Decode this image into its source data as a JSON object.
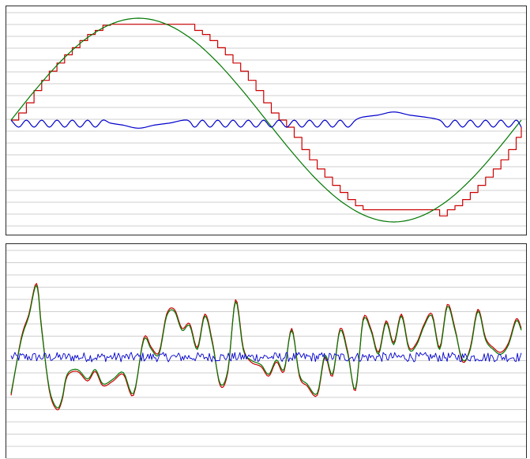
{
  "chart_data": [
    {
      "type": "line",
      "title": "",
      "xlabel": "",
      "ylabel": "",
      "xlim": [
        0,
        1
      ],
      "ylim": [
        -1.12,
        1.12
      ],
      "grid": true,
      "legend": "none",
      "series": [
        {
          "color": "#cc0000",
          "note_style": "steps",
          "x": [
            0.0,
            0.015,
            0.03,
            0.045,
            0.06,
            0.075,
            0.09,
            0.105,
            0.12,
            0.135,
            0.15,
            0.165,
            0.18,
            0.195,
            0.345,
            0.36,
            0.375,
            0.39,
            0.405,
            0.42,
            0.435,
            0.45,
            0.465,
            0.48,
            0.495,
            0.51,
            0.525,
            0.54,
            0.555,
            0.57,
            0.585,
            0.6,
            0.615,
            0.63,
            0.645,
            0.66,
            0.675,
            0.69,
            0.84,
            0.855,
            0.87,
            0.885,
            0.9,
            0.915,
            0.93,
            0.945,
            0.96,
            0.975,
            0.99,
            1.0
          ],
          "y": [
            0.0,
            0.07,
            0.17,
            0.29,
            0.39,
            0.48,
            0.56,
            0.64,
            0.71,
            0.78,
            0.84,
            0.88,
            0.93,
            0.94,
            0.94,
            0.88,
            0.84,
            0.78,
            0.71,
            0.64,
            0.56,
            0.48,
            0.39,
            0.29,
            0.17,
            0.07,
            0.0,
            -0.07,
            -0.17,
            -0.29,
            -0.39,
            -0.48,
            -0.56,
            -0.64,
            -0.71,
            -0.78,
            -0.84,
            -0.88,
            -0.94,
            -0.88,
            -0.84,
            -0.78,
            -0.71,
            -0.64,
            -0.56,
            -0.48,
            -0.39,
            -0.29,
            -0.17,
            -0.07
          ]
        },
        {
          "color": "#007700",
          "note_style": "sine",
          "x": [
            0.0,
            0.05,
            0.1,
            0.15,
            0.2,
            0.25,
            0.3,
            0.35,
            0.4,
            0.45,
            0.5,
            0.55,
            0.6,
            0.65,
            0.7,
            0.75,
            0.8,
            0.85,
            0.9,
            0.95,
            1.0
          ],
          "y": [
            0.0,
            0.31,
            0.59,
            0.81,
            0.95,
            1.0,
            0.95,
            0.81,
            0.59,
            0.31,
            0.0,
            -0.31,
            -0.59,
            -0.81,
            -0.95,
            -1.0,
            -0.95,
            -0.81,
            -0.59,
            -0.31,
            0.0
          ]
        },
        {
          "color": "#0000cc",
          "note_style": "sawtooth error",
          "x": [
            0.0,
            0.015,
            0.03,
            0.045,
            0.06,
            0.075,
            0.09,
            0.105,
            0.12,
            0.135,
            0.15,
            0.165,
            0.18,
            0.195,
            0.22,
            0.25,
            0.28,
            0.31,
            0.345,
            0.36,
            0.375,
            0.39,
            0.405,
            0.42,
            0.435,
            0.45,
            0.465,
            0.48,
            0.495,
            0.51,
            0.525,
            0.54,
            0.555,
            0.57,
            0.585,
            0.6,
            0.615,
            0.63,
            0.645,
            0.66,
            0.675,
            0.69,
            0.72,
            0.75,
            0.78,
            0.81,
            0.84,
            0.855,
            0.87,
            0.885,
            0.9,
            0.915,
            0.93,
            0.945,
            0.96,
            0.975,
            0.99,
            1.0
          ],
          "y": [
            0.0,
            -0.07,
            0.0,
            -0.07,
            0.0,
            -0.07,
            0.0,
            -0.07,
            0.0,
            -0.07,
            0.0,
            -0.07,
            0.0,
            -0.03,
            -0.05,
            -0.08,
            -0.05,
            -0.03,
            0.0,
            -0.07,
            0.0,
            -0.07,
            0.0,
            -0.07,
            0.0,
            -0.07,
            0.0,
            -0.07,
            0.0,
            -0.07,
            0.0,
            -0.07,
            0.0,
            -0.07,
            0.0,
            -0.07,
            0.0,
            -0.07,
            0.0,
            -0.07,
            0.0,
            0.03,
            0.05,
            0.08,
            0.05,
            0.03,
            0.0,
            -0.07,
            0.0,
            -0.07,
            0.0,
            -0.07,
            0.0,
            -0.07,
            0.0,
            -0.07,
            0.0,
            -0.07
          ]
        }
      ]
    },
    {
      "type": "line",
      "title": "",
      "xlabel": "",
      "ylabel": "",
      "xlim": [
        0,
        1
      ],
      "ylim": [
        -1.0,
        1.0
      ],
      "grid": true,
      "legend": "none",
      "series": [
        {
          "color": "#cc0000",
          "note_style": "quantized noise signal",
          "x": [
            0.0,
            0.02,
            0.035,
            0.05,
            0.06,
            0.075,
            0.09,
            0.1,
            0.11,
            0.13,
            0.15,
            0.165,
            0.18,
            0.2,
            0.22,
            0.24,
            0.26,
            0.275,
            0.29,
            0.305,
            0.32,
            0.335,
            0.35,
            0.365,
            0.38,
            0.395,
            0.41,
            0.425,
            0.44,
            0.455,
            0.47,
            0.49,
            0.505,
            0.52,
            0.535,
            0.55,
            0.565,
            0.58,
            0.6,
            0.615,
            0.63,
            0.645,
            0.66,
            0.675,
            0.69,
            0.705,
            0.72,
            0.735,
            0.75,
            0.765,
            0.78,
            0.795,
            0.81,
            0.825,
            0.84,
            0.855,
            0.87,
            0.885,
            0.9,
            0.915,
            0.93,
            0.945,
            0.96,
            0.975,
            0.99,
            1.0
          ],
          "y": [
            -0.4,
            0.2,
            0.45,
            0.77,
            0.3,
            -0.35,
            -0.55,
            -0.45,
            -0.2,
            -0.15,
            -0.25,
            -0.15,
            -0.3,
            -0.25,
            -0.18,
            -0.4,
            0.2,
            0.1,
            0.05,
            0.45,
            0.5,
            0.3,
            0.35,
            0.1,
            0.45,
            0.15,
            -0.3,
            -0.15,
            0.6,
            0.1,
            -0.05,
            -0.1,
            -0.2,
            -0.05,
            -0.15,
            0.3,
            -0.2,
            -0.3,
            -0.4,
            0.0,
            -0.2,
            0.3,
            0.05,
            -0.35,
            0.4,
            0.3,
            0.05,
            0.38,
            0.15,
            0.45,
            0.1,
            0.15,
            0.35,
            0.45,
            0.1,
            0.55,
            0.3,
            -0.05,
            0.1,
            0.5,
            0.2,
            0.1,
            0.05,
            0.15,
            0.4,
            0.3
          ]
        },
        {
          "color": "#007700",
          "note_style": "smooth noise signal",
          "x": [
            0.0,
            0.02,
            0.035,
            0.05,
            0.06,
            0.075,
            0.09,
            0.1,
            0.11,
            0.13,
            0.15,
            0.165,
            0.18,
            0.2,
            0.22,
            0.24,
            0.26,
            0.275,
            0.29,
            0.305,
            0.32,
            0.335,
            0.35,
            0.365,
            0.38,
            0.395,
            0.41,
            0.425,
            0.44,
            0.455,
            0.47,
            0.49,
            0.505,
            0.52,
            0.535,
            0.55,
            0.565,
            0.58,
            0.6,
            0.615,
            0.63,
            0.645,
            0.66,
            0.675,
            0.69,
            0.705,
            0.72,
            0.735,
            0.75,
            0.765,
            0.78,
            0.795,
            0.81,
            0.825,
            0.84,
            0.855,
            0.87,
            0.885,
            0.9,
            0.915,
            0.93,
            0.945,
            0.96,
            0.975,
            0.99,
            1.0
          ],
          "y": [
            -0.38,
            0.18,
            0.43,
            0.75,
            0.28,
            -0.33,
            -0.53,
            -0.43,
            -0.18,
            -0.13,
            -0.23,
            -0.13,
            -0.28,
            -0.23,
            -0.16,
            -0.38,
            0.18,
            0.08,
            0.03,
            0.43,
            0.48,
            0.28,
            0.33,
            0.08,
            0.43,
            0.13,
            -0.28,
            -0.13,
            0.58,
            0.08,
            -0.03,
            -0.08,
            -0.18,
            -0.03,
            -0.13,
            0.28,
            -0.18,
            -0.28,
            -0.38,
            0.02,
            -0.18,
            0.28,
            0.03,
            -0.33,
            0.38,
            0.28,
            0.03,
            0.36,
            0.13,
            0.43,
            0.08,
            0.13,
            0.33,
            0.43,
            0.08,
            0.53,
            0.28,
            -0.03,
            0.08,
            0.48,
            0.18,
            0.08,
            0.03,
            0.13,
            0.38,
            0.28
          ]
        },
        {
          "color": "#0000cc",
          "note_style": "noise error",
          "amplitude": 0.05,
          "x_count": 400
        }
      ]
    }
  ]
}
